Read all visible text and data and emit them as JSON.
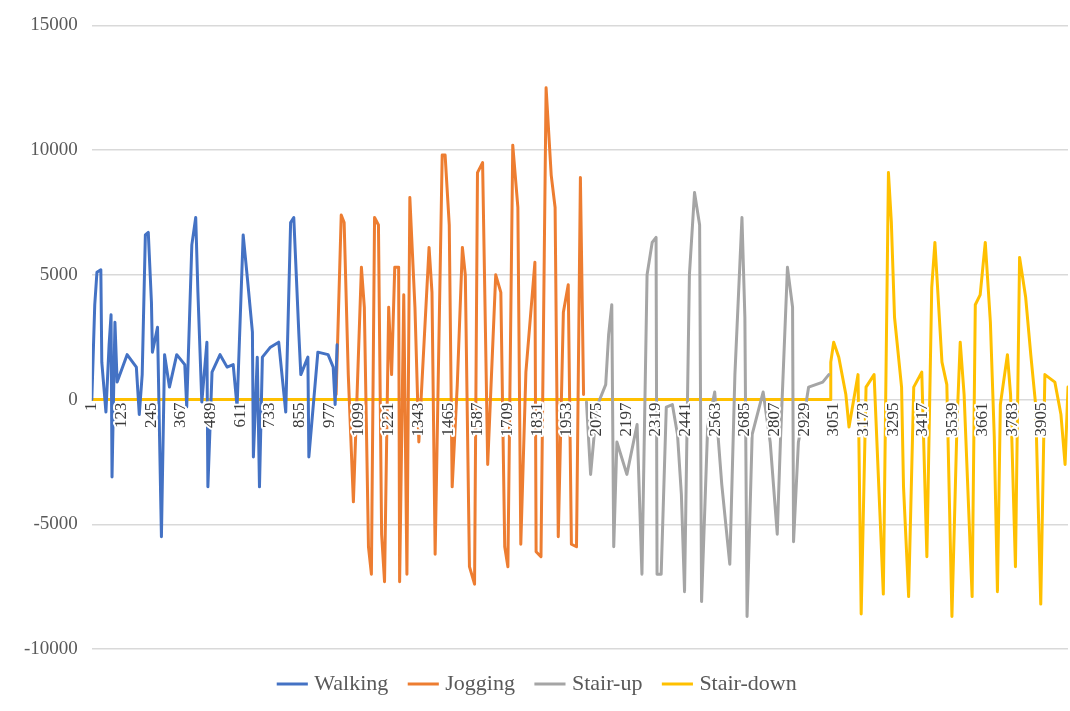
{
  "chart_data": {
    "type": "line",
    "xlim": [
      1,
      4013
    ],
    "xticks": [
      1,
      123,
      245,
      367,
      489,
      611,
      733,
      855,
      977,
      1099,
      1221,
      1343,
      1465,
      1587,
      1709,
      1831,
      1953,
      2075,
      2197,
      2319,
      2441,
      2563,
      2685,
      2807,
      2929,
      3051,
      3173,
      3295,
      3417,
      3539,
      3661,
      3783,
      3905
    ],
    "ylim": [
      -10000,
      15000
    ],
    "yticks": [
      -10000,
      -5000,
      0,
      5000,
      10000,
      15000
    ],
    "grid": "y",
    "legend": "bottom",
    "marker": "none",
    "series": [
      {
        "name": "Walking",
        "color": "#4472c4",
        "x": [
          1,
          13,
          22,
          38,
          42,
          59,
          72,
          80,
          84,
          96,
          105,
          146,
          184,
          196,
          208,
          221,
          233,
          246,
          250,
          271,
          287,
          300,
          320,
          350,
          383,
          391,
          412,
          428,
          437,
          453,
          474,
          478,
          495,
          528,
          557,
          582,
          598,
          623,
          640,
          661,
          665,
          681,
          690,
          702,
          735,
          769,
          798,
          818,
          831,
          852,
          860,
          889,
          893,
          930,
          972,
          993,
          1001,
          1009
        ],
        "values": [
          0,
          3800,
          5100,
          5200,
          1500,
          -500,
          2200,
          3400,
          -3100,
          3100,
          700,
          1800,
          1300,
          -600,
          1000,
          6600,
          6700,
          3900,
          1900,
          2900,
          -5500,
          1800,
          500,
          1800,
          1400,
          -300,
          6200,
          7300,
          4300,
          -100,
          2300,
          -3500,
          1100,
          1800,
          1300,
          1400,
          -300,
          6600,
          4900,
          2700,
          -2300,
          1700,
          -3500,
          1700,
          2100,
          2300,
          -500,
          7100,
          7300,
          2600,
          1000,
          1700,
          -2300,
          1900,
          1800,
          1300,
          -200,
          2200
        ]
      },
      {
        "name": "Jogging",
        "color": "#ed7d31",
        "x": [
          1005,
          1026,
          1038,
          1055,
          1076,
          1109,
          1121,
          1138,
          1150,
          1163,
          1179,
          1192,
          1204,
          1221,
          1233,
          1246,
          1262,
          1266,
          1283,
          1296,
          1308,
          1329,
          1345,
          1387,
          1399,
          1412,
          1441,
          1453,
          1470,
          1482,
          1503,
          1524,
          1536,
          1553,
          1574,
          1586,
          1607,
          1628,
          1661,
          1682,
          1698,
          1711,
          1731,
          1752,
          1764,
          1785,
          1822,
          1827,
          1847,
          1868,
          1889,
          1905,
          1918,
          1939,
          1959,
          1972,
          1993,
          2009,
          2022
        ],
        "values": [
          200,
          7400,
          7100,
          1000,
          -4100,
          5300,
          3700,
          -5900,
          -7000,
          7300,
          7000,
          -5400,
          -7300,
          3700,
          1000,
          5300,
          5300,
          -7300,
          4200,
          -7000,
          8100,
          3700,
          -1700,
          6100,
          4300,
          -6200,
          9800,
          9800,
          7000,
          -3500,
          600,
          6100,
          5000,
          -6700,
          -7400,
          9100,
          9500,
          -2600,
          5000,
          4300,
          -5900,
          -6700,
          10200,
          7700,
          -5800,
          1100,
          5500,
          -6100,
          -6300,
          12500,
          9000,
          7700,
          -5500,
          3500,
          4600,
          -5800,
          -5900,
          8900,
          200
        ]
      },
      {
        "name": "Stair-up",
        "color": "#a5a5a5",
        "x": [
          2034,
          2051,
          2076,
          2113,
          2125,
          2138,
          2146,
          2159,
          2200,
          2242,
          2262,
          2283,
          2304,
          2320,
          2324,
          2341,
          2362,
          2387,
          2408,
          2424,
          2437,
          2457,
          2478,
          2499,
          2507,
          2532,
          2561,
          2590,
          2623,
          2644,
          2673,
          2685,
          2694,
          2715,
          2760,
          2789,
          2818,
          2831,
          2860,
          2881,
          2885,
          2905,
          2934,
          2947,
          3005,
          3030
        ],
        "values": [
          -100,
          -3000,
          -300,
          600,
          2600,
          3800,
          -5900,
          -1700,
          -3000,
          -1000,
          -7000,
          5000,
          6300,
          6500,
          -7000,
          -7000,
          -300,
          -200,
          -1400,
          -3800,
          -7700,
          5000,
          8300,
          7000,
          -8100,
          -1100,
          300,
          -3400,
          -6600,
          1000,
          7300,
          3300,
          -8700,
          -1400,
          300,
          -1700,
          -5400,
          -1700,
          5300,
          3700,
          -5700,
          -1700,
          -300,
          500,
          700,
          1000
        ]
      },
      {
        "name": "Stair-down",
        "color": "#ffc000",
        "x": [
          1,
          3036,
          3038,
          3050,
          3071,
          3100,
          3113,
          3150,
          3163,
          3183,
          3216,
          3254,
          3275,
          3287,
          3300,
          3329,
          3337,
          3358,
          3379,
          3412,
          3433,
          3453,
          3466,
          3495,
          3515,
          3536,
          3557,
          3570,
          3586,
          3619,
          3632,
          3652,
          3673,
          3694,
          3710,
          3723,
          3735,
          3764,
          3777,
          3797,
          3814,
          3839,
          3860,
          3880,
          3901,
          3918,
          3959,
          3984,
          4001,
          4013
        ],
        "values": [
          0,
          0,
          1500,
          2300,
          1700,
          200,
          -1100,
          1000,
          -8600,
          500,
          1000,
          -7800,
          9100,
          7100,
          3300,
          500,
          -3500,
          -7900,
          500,
          1100,
          -6300,
          4500,
          6300,
          1500,
          600,
          -8700,
          -900,
          2300,
          200,
          -7900,
          3800,
          4200,
          6300,
          3100,
          -1500,
          -7700,
          -200,
          1800,
          200,
          -6700,
          5700,
          4100,
          1800,
          -200,
          -8200,
          1000,
          700,
          -600,
          -2600,
          500
        ]
      }
    ]
  }
}
